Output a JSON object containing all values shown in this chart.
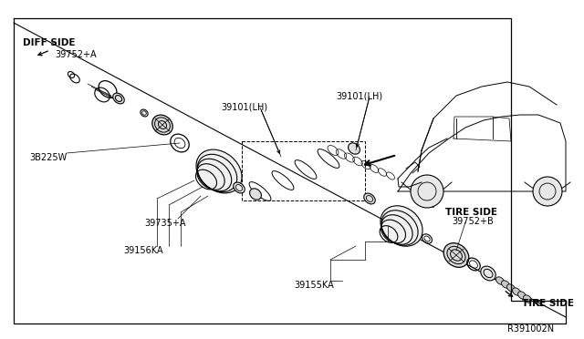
{
  "bg_color": "#ffffff",
  "line_color": "#000000",
  "fig_width": 6.4,
  "fig_height": 3.72,
  "dpi": 100,
  "labels": {
    "diff_side": "DIFF SIDE",
    "tire_side_top": "TIRE SIDE",
    "tire_side_bottom": "TIRE SIDE",
    "part_39752a": "39752+A",
    "part_3b225w": "3B225W",
    "part_39735a": "39735+A",
    "part_39156ka": "39156KA",
    "part_39101_lh_left": "39101(LH)",
    "part_39101_lh_right": "39101(LH)",
    "part_39155ka": "39155KA",
    "part_39752b": "39752+B",
    "ref_code": "R391002N"
  }
}
